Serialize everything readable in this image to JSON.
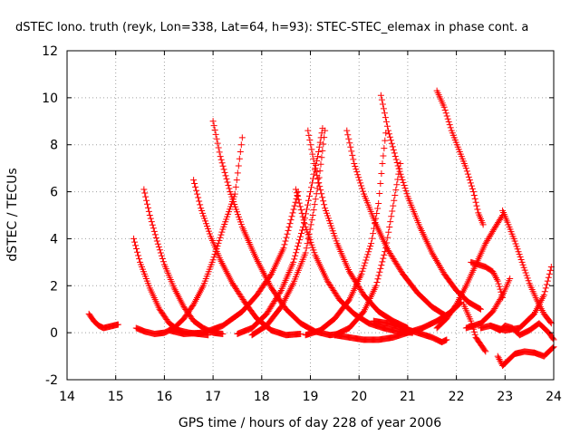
{
  "chart_data": {
    "type": "scatter",
    "title": "dSTEC Iono. truth (reyk, Lon=338, Lat=64, h=93): STEC-STEC_elemax in phase cont. a",
    "xlabel": "GPS time / hours of day 228 of year 2006",
    "ylabel": "dSTEC  / TECUs",
    "xlim": [
      14,
      24
    ],
    "ylim": [
      -2,
      12
    ],
    "xticks": [
      "14",
      "15",
      "16",
      "17",
      "18",
      "19",
      "20",
      "21",
      "22",
      "23",
      "24"
    ],
    "yticks": [
      "-2",
      "0",
      "2",
      "4",
      "6",
      "8",
      "10",
      "12"
    ],
    "grid": true,
    "legend": "none",
    "marker": "plus",
    "color": "#ff0000",
    "series": [
      {
        "points": [
          [
            14.45,
            0.8
          ],
          [
            14.55,
            0.5
          ],
          [
            14.65,
            0.3
          ],
          [
            14.75,
            0.2
          ],
          [
            14.85,
            0.25
          ],
          [
            14.95,
            0.3
          ],
          [
            15.05,
            0.35
          ]
        ]
      },
      {
        "points": [
          [
            15.37,
            4.0
          ],
          [
            15.5,
            3.0
          ],
          [
            15.7,
            1.9
          ],
          [
            15.9,
            1.0
          ],
          [
            16.1,
            0.4
          ],
          [
            16.3,
            0.1
          ],
          [
            16.5,
            0.0
          ],
          [
            16.7,
            -0.05
          ],
          [
            16.9,
            -0.1
          ]
        ]
      },
      {
        "points": [
          [
            15.42,
            0.2
          ],
          [
            15.6,
            0.05
          ],
          [
            15.8,
            -0.05
          ],
          [
            16.0,
            0.0
          ],
          [
            16.2,
            0.2
          ],
          [
            16.4,
            0.6
          ],
          [
            16.6,
            1.2
          ],
          [
            16.8,
            2.0
          ],
          [
            17.0,
            3.1
          ],
          [
            17.2,
            4.4
          ],
          [
            17.45,
            5.9
          ],
          [
            17.6,
            8.3
          ]
        ]
      },
      {
        "points": [
          [
            15.58,
            6.1
          ],
          [
            15.7,
            5.0
          ],
          [
            15.85,
            3.9
          ],
          [
            16.0,
            2.9
          ],
          [
            16.2,
            1.9
          ],
          [
            16.4,
            1.1
          ],
          [
            16.6,
            0.5
          ],
          [
            16.8,
            0.2
          ],
          [
            17.0,
            0.0
          ],
          [
            17.2,
            -0.05
          ]
        ]
      },
      {
        "points": [
          [
            16.6,
            6.5
          ],
          [
            16.75,
            5.3
          ],
          [
            16.95,
            4.1
          ],
          [
            17.15,
            3.1
          ],
          [
            17.4,
            2.1
          ],
          [
            17.65,
            1.3
          ],
          [
            17.9,
            0.6
          ],
          [
            18.2,
            0.1
          ],
          [
            18.5,
            -0.1
          ],
          [
            18.8,
            -0.05
          ]
        ]
      },
      {
        "points": [
          [
            16.1,
            0.1
          ],
          [
            16.4,
            -0.05
          ],
          [
            16.8,
            0.0
          ],
          [
            17.2,
            0.3
          ],
          [
            17.6,
            0.9
          ],
          [
            17.9,
            1.6
          ],
          [
            18.2,
            2.5
          ],
          [
            18.45,
            3.6
          ],
          [
            18.6,
            4.8
          ],
          [
            18.75,
            6.0
          ]
        ]
      },
      {
        "points": [
          [
            17.0,
            9.0
          ],
          [
            17.15,
            7.5
          ],
          [
            17.35,
            6.0
          ],
          [
            17.6,
            4.5
          ],
          [
            17.9,
            3.1
          ],
          [
            18.2,
            1.9
          ],
          [
            18.5,
            1.0
          ],
          [
            18.8,
            0.4
          ],
          [
            19.1,
            0.05
          ],
          [
            19.4,
            -0.1
          ],
          [
            19.6,
            -0.05
          ]
        ]
      },
      {
        "points": [
          [
            17.5,
            -0.05
          ],
          [
            17.8,
            0.2
          ],
          [
            18.1,
            0.8
          ],
          [
            18.4,
            1.8
          ],
          [
            18.65,
            3.0
          ],
          [
            18.85,
            4.5
          ],
          [
            19.0,
            6.0
          ],
          [
            19.15,
            7.5
          ],
          [
            19.25,
            8.7
          ]
        ]
      },
      {
        "points": [
          [
            18.7,
            6.1
          ],
          [
            18.9,
            4.5
          ],
          [
            19.1,
            3.3
          ],
          [
            19.35,
            2.2
          ],
          [
            19.6,
            1.4
          ],
          [
            19.9,
            0.8
          ],
          [
            20.2,
            0.4
          ],
          [
            20.5,
            0.2
          ],
          [
            20.8,
            0.05
          ],
          [
            21.1,
            0.0
          ]
        ]
      },
      {
        "points": [
          [
            17.8,
            -0.1
          ],
          [
            18.1,
            0.3
          ],
          [
            18.4,
            1.1
          ],
          [
            18.65,
            2.1
          ],
          [
            18.9,
            3.4
          ],
          [
            19.05,
            5.0
          ],
          [
            19.18,
            6.6
          ],
          [
            19.3,
            8.6
          ]
        ]
      },
      {
        "points": [
          [
            18.95,
            8.6
          ],
          [
            19.1,
            7.0
          ],
          [
            19.3,
            5.3
          ],
          [
            19.55,
            3.8
          ],
          [
            19.8,
            2.6
          ],
          [
            20.1,
            1.6
          ],
          [
            20.4,
            0.9
          ],
          [
            20.7,
            0.5
          ],
          [
            21.0,
            0.2
          ]
        ]
      },
      {
        "points": [
          [
            18.9,
            -0.1
          ],
          [
            19.2,
            0.1
          ],
          [
            19.5,
            0.6
          ],
          [
            19.8,
            1.4
          ],
          [
            20.05,
            2.5
          ],
          [
            20.25,
            3.8
          ],
          [
            20.4,
            5.5
          ],
          [
            20.48,
            7.2
          ],
          [
            20.55,
            8.5
          ]
        ]
      },
      {
        "points": [
          [
            19.75,
            8.6
          ],
          [
            19.9,
            7.2
          ],
          [
            20.1,
            5.9
          ],
          [
            20.35,
            4.6
          ],
          [
            20.6,
            3.5
          ],
          [
            20.9,
            2.5
          ],
          [
            21.2,
            1.7
          ],
          [
            21.5,
            1.1
          ],
          [
            21.8,
            0.7
          ]
        ]
      },
      {
        "points": [
          [
            19.5,
            -0.1
          ],
          [
            19.8,
            0.2
          ],
          [
            20.1,
            0.9
          ],
          [
            20.35,
            2.0
          ],
          [
            20.55,
            3.6
          ],
          [
            20.7,
            5.4
          ],
          [
            20.85,
            7.2
          ]
        ]
      },
      {
        "points": [
          [
            20.45,
            10.1
          ],
          [
            20.6,
            8.6
          ],
          [
            20.8,
            7.1
          ],
          [
            21.0,
            5.8
          ],
          [
            21.25,
            4.5
          ],
          [
            21.5,
            3.4
          ],
          [
            21.75,
            2.5
          ],
          [
            22.0,
            1.8
          ],
          [
            22.25,
            1.3
          ],
          [
            22.5,
            1.0
          ]
        ]
      },
      {
        "points": [
          [
            19.5,
            -0.1
          ],
          [
            19.8,
            -0.2
          ],
          [
            20.1,
            -0.3
          ],
          [
            20.4,
            -0.3
          ],
          [
            20.7,
            -0.2
          ],
          [
            21.0,
            0.0
          ],
          [
            21.3,
            0.2
          ],
          [
            21.6,
            0.5
          ],
          [
            21.9,
            0.9
          ],
          [
            22.1,
            1.3
          ]
        ]
      },
      {
        "points": [
          [
            20.3,
            0.5
          ],
          [
            20.6,
            0.4
          ],
          [
            20.9,
            0.2
          ],
          [
            21.2,
            0.0
          ],
          [
            21.5,
            -0.2
          ],
          [
            21.7,
            -0.4
          ],
          [
            21.8,
            -0.3
          ]
        ]
      },
      {
        "points": [
          [
            21.6,
            10.3
          ],
          [
            21.75,
            9.6
          ],
          [
            21.9,
            8.6
          ],
          [
            22.05,
            7.8
          ],
          [
            22.2,
            7.0
          ],
          [
            22.35,
            6.0
          ],
          [
            22.45,
            5.1
          ],
          [
            22.55,
            4.6
          ]
        ]
      },
      {
        "points": [
          [
            22.15,
            1.2
          ],
          [
            22.3,
            0.5
          ],
          [
            22.4,
            -0.2
          ],
          [
            22.5,
            -0.5
          ],
          [
            22.6,
            -0.8
          ]
        ]
      },
      {
        "points": [
          [
            21.6,
            0.2
          ],
          [
            21.8,
            0.6
          ],
          [
            22.0,
            1.2
          ],
          [
            22.2,
            2.0
          ],
          [
            22.4,
            2.9
          ],
          [
            22.6,
            3.8
          ],
          [
            22.8,
            4.5
          ],
          [
            22.95,
            5.0
          ]
        ]
      },
      {
        "points": [
          [
            22.2,
            0.2
          ],
          [
            22.5,
            0.4
          ],
          [
            22.75,
            0.9
          ],
          [
            22.95,
            1.6
          ],
          [
            23.1,
            2.3
          ]
        ]
      },
      {
        "points": [
          [
            22.3,
            3.0
          ],
          [
            22.45,
            2.9
          ],
          [
            22.6,
            2.8
          ],
          [
            22.75,
            2.6
          ],
          [
            22.85,
            2.2
          ],
          [
            22.95,
            1.5
          ]
        ]
      },
      {
        "points": [
          [
            22.95,
            5.2
          ],
          [
            23.05,
            4.7
          ],
          [
            23.2,
            3.9
          ],
          [
            23.35,
            3.0
          ],
          [
            23.5,
            2.1
          ],
          [
            23.65,
            1.4
          ],
          [
            23.8,
            0.8
          ],
          [
            23.95,
            0.4
          ]
        ]
      },
      {
        "points": [
          [
            22.7,
            0.3
          ],
          [
            23.0,
            0.1
          ],
          [
            23.3,
            0.2
          ],
          [
            23.6,
            0.8
          ],
          [
            23.8,
            1.6
          ],
          [
            23.95,
            2.8
          ]
        ]
      },
      {
        "points": [
          [
            22.85,
            -1.0
          ],
          [
            22.95,
            -1.4
          ],
          [
            23.05,
            -1.2
          ],
          [
            23.2,
            -0.9
          ],
          [
            23.4,
            -0.8
          ],
          [
            23.6,
            -0.85
          ],
          [
            23.8,
            -1.0
          ],
          [
            24.0,
            -0.6
          ]
        ]
      },
      {
        "points": [
          [
            22.5,
            0.2
          ],
          [
            22.7,
            0.3
          ],
          [
            22.9,
            0.1
          ],
          [
            23.0,
            0.3
          ],
          [
            23.15,
            0.2
          ],
          [
            23.3,
            -0.1
          ],
          [
            23.5,
            0.1
          ],
          [
            23.7,
            0.4
          ],
          [
            23.9,
            0.0
          ],
          [
            24.0,
            -0.3
          ]
        ]
      }
    ]
  }
}
